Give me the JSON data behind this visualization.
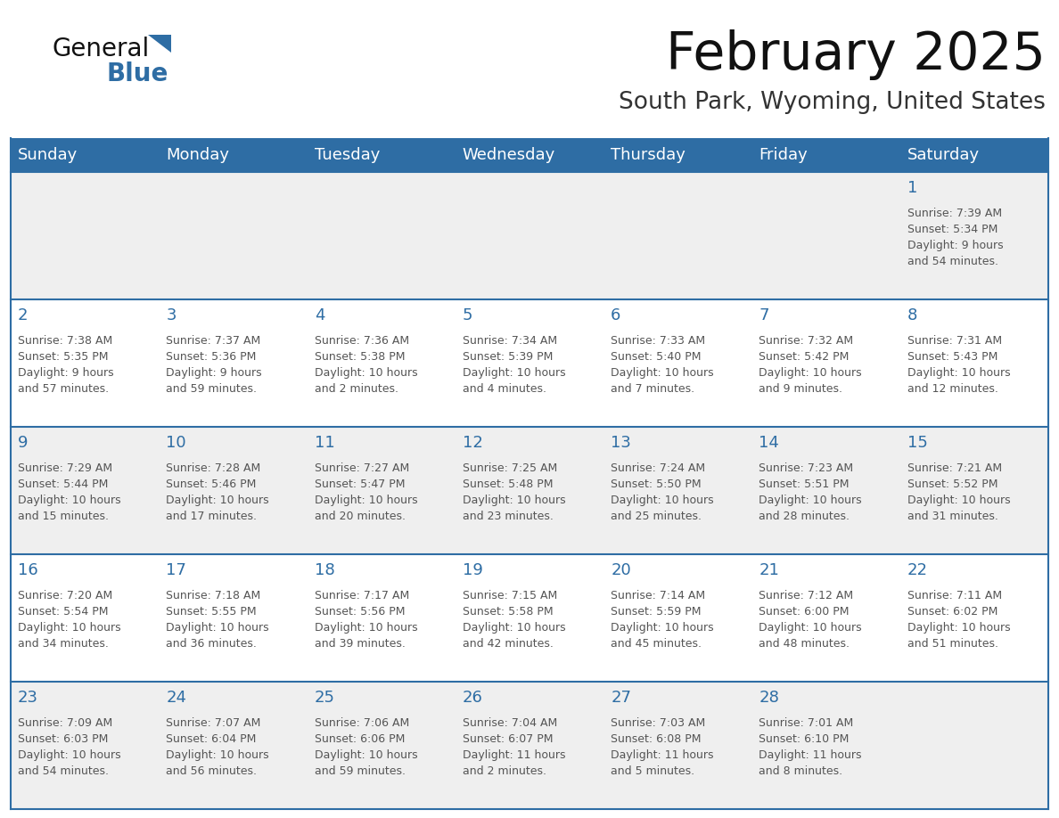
{
  "title": "February 2025",
  "subtitle": "South Park, Wyoming, United States",
  "header_bg": "#2E6DA4",
  "header_text_color": "#FFFFFF",
  "row_bg": [
    "#EFEFEF",
    "#FFFFFF",
    "#EFEFEF",
    "#FFFFFF",
    "#EFEFEF"
  ],
  "cell_border_color": "#2E6DA4",
  "day_number_color": "#2E6DA4",
  "info_text_color": "#555555",
  "title_color": "#111111",
  "subtitle_color": "#333333",
  "days_of_week": [
    "Sunday",
    "Monday",
    "Tuesday",
    "Wednesday",
    "Thursday",
    "Friday",
    "Saturday"
  ],
  "calendar_data": [
    [
      null,
      null,
      null,
      null,
      null,
      null,
      {
        "day": "1",
        "sunrise": "7:39 AM",
        "sunset": "5:34 PM",
        "daylight": "9 hours\nand 54 minutes."
      }
    ],
    [
      {
        "day": "2",
        "sunrise": "7:38 AM",
        "sunset": "5:35 PM",
        "daylight": "9 hours\nand 57 minutes."
      },
      {
        "day": "3",
        "sunrise": "7:37 AM",
        "sunset": "5:36 PM",
        "daylight": "9 hours\nand 59 minutes."
      },
      {
        "day": "4",
        "sunrise": "7:36 AM",
        "sunset": "5:38 PM",
        "daylight": "10 hours\nand 2 minutes."
      },
      {
        "day": "5",
        "sunrise": "7:34 AM",
        "sunset": "5:39 PM",
        "daylight": "10 hours\nand 4 minutes."
      },
      {
        "day": "6",
        "sunrise": "7:33 AM",
        "sunset": "5:40 PM",
        "daylight": "10 hours\nand 7 minutes."
      },
      {
        "day": "7",
        "sunrise": "7:32 AM",
        "sunset": "5:42 PM",
        "daylight": "10 hours\nand 9 minutes."
      },
      {
        "day": "8",
        "sunrise": "7:31 AM",
        "sunset": "5:43 PM",
        "daylight": "10 hours\nand 12 minutes."
      }
    ],
    [
      {
        "day": "9",
        "sunrise": "7:29 AM",
        "sunset": "5:44 PM",
        "daylight": "10 hours\nand 15 minutes."
      },
      {
        "day": "10",
        "sunrise": "7:28 AM",
        "sunset": "5:46 PM",
        "daylight": "10 hours\nand 17 minutes."
      },
      {
        "day": "11",
        "sunrise": "7:27 AM",
        "sunset": "5:47 PM",
        "daylight": "10 hours\nand 20 minutes."
      },
      {
        "day": "12",
        "sunrise": "7:25 AM",
        "sunset": "5:48 PM",
        "daylight": "10 hours\nand 23 minutes."
      },
      {
        "day": "13",
        "sunrise": "7:24 AM",
        "sunset": "5:50 PM",
        "daylight": "10 hours\nand 25 minutes."
      },
      {
        "day": "14",
        "sunrise": "7:23 AM",
        "sunset": "5:51 PM",
        "daylight": "10 hours\nand 28 minutes."
      },
      {
        "day": "15",
        "sunrise": "7:21 AM",
        "sunset": "5:52 PM",
        "daylight": "10 hours\nand 31 minutes."
      }
    ],
    [
      {
        "day": "16",
        "sunrise": "7:20 AM",
        "sunset": "5:54 PM",
        "daylight": "10 hours\nand 34 minutes."
      },
      {
        "day": "17",
        "sunrise": "7:18 AM",
        "sunset": "5:55 PM",
        "daylight": "10 hours\nand 36 minutes."
      },
      {
        "day": "18",
        "sunrise": "7:17 AM",
        "sunset": "5:56 PM",
        "daylight": "10 hours\nand 39 minutes."
      },
      {
        "day": "19",
        "sunrise": "7:15 AM",
        "sunset": "5:58 PM",
        "daylight": "10 hours\nand 42 minutes."
      },
      {
        "day": "20",
        "sunrise": "7:14 AM",
        "sunset": "5:59 PM",
        "daylight": "10 hours\nand 45 minutes."
      },
      {
        "day": "21",
        "sunrise": "7:12 AM",
        "sunset": "6:00 PM",
        "daylight": "10 hours\nand 48 minutes."
      },
      {
        "day": "22",
        "sunrise": "7:11 AM",
        "sunset": "6:02 PM",
        "daylight": "10 hours\nand 51 minutes."
      }
    ],
    [
      {
        "day": "23",
        "sunrise": "7:09 AM",
        "sunset": "6:03 PM",
        "daylight": "10 hours\nand 54 minutes."
      },
      {
        "day": "24",
        "sunrise": "7:07 AM",
        "sunset": "6:04 PM",
        "daylight": "10 hours\nand 56 minutes."
      },
      {
        "day": "25",
        "sunrise": "7:06 AM",
        "sunset": "6:06 PM",
        "daylight": "10 hours\nand 59 minutes."
      },
      {
        "day": "26",
        "sunrise": "7:04 AM",
        "sunset": "6:07 PM",
        "daylight": "11 hours\nand 2 minutes."
      },
      {
        "day": "27",
        "sunrise": "7:03 AM",
        "sunset": "6:08 PM",
        "daylight": "11 hours\nand 5 minutes."
      },
      {
        "day": "28",
        "sunrise": "7:01 AM",
        "sunset": "6:10 PM",
        "daylight": "11 hours\nand 8 minutes."
      },
      null
    ]
  ],
  "logo_general_color": "#111111",
  "logo_blue_color": "#2E6DA4",
  "logo_triangle_color": "#2E6DA4"
}
